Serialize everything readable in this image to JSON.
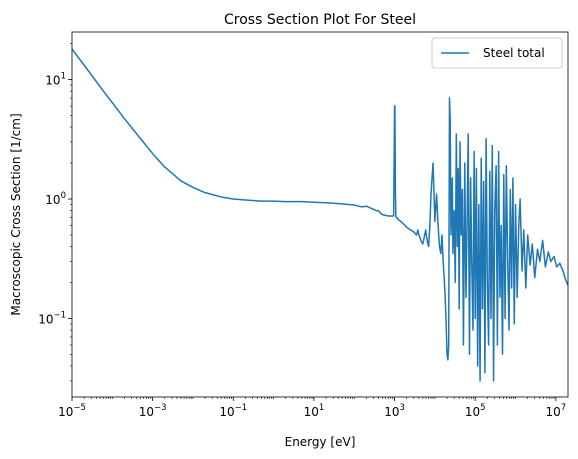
{
  "chart_data": {
    "type": "line",
    "title": "Cross Section Plot For Steel",
    "xlabel": "Energy [eV]",
    "ylabel": "Macroscopic Cross Section [1/cm]",
    "xscale": "log",
    "yscale": "log",
    "xlim": [
      1e-05,
      20000000
    ],
    "ylim": [
      0.022,
      25
    ],
    "grid": false,
    "legend_position": "top-right",
    "x_ticks": [
      {
        "value": 1e-05,
        "base": "10",
        "exp": "−5"
      },
      {
        "value": 0.001,
        "base": "10",
        "exp": "−3"
      },
      {
        "value": 0.1,
        "base": "10",
        "exp": "−1"
      },
      {
        "value": 10,
        "base": "10",
        "exp": "1"
      },
      {
        "value": 1000,
        "base": "10",
        "exp": "3"
      },
      {
        "value": 100000,
        "base": "10",
        "exp": "5"
      },
      {
        "value": 10000000,
        "base": "10",
        "exp": "7"
      }
    ],
    "y_ticks": [
      {
        "value": 0.1,
        "base": "10",
        "exp": "−1"
      },
      {
        "value": 1,
        "base": "10",
        "exp": "0"
      },
      {
        "value": 10,
        "base": "10",
        "exp": "1"
      }
    ],
    "series": [
      {
        "name": "Steel total",
        "color": "#1f77b4",
        "x": [
          1e-05,
          2e-05,
          5e-05,
          0.0001,
          0.0002,
          0.0005,
          0.001,
          0.002,
          0.005,
          0.01,
          0.02,
          0.05,
          0.1,
          0.2,
          0.5,
          1,
          2,
          5,
          10,
          20,
          50,
          100,
          150,
          200,
          300,
          350,
          400,
          420,
          450,
          500,
          700,
          950,
          1000,
          1020,
          1050,
          1080,
          1100,
          1150,
          1200,
          1500,
          2000,
          2500,
          3000,
          3500,
          3800,
          4000,
          4300,
          4600,
          5000,
          5600,
          5900,
          6500,
          7000,
          7500,
          8000,
          9000,
          10000,
          11000,
          12000,
          13000,
          14000,
          15000,
          16000,
          17000,
          18000,
          19000,
          20000,
          21000,
          22000,
          23000,
          24000,
          25000,
          26000,
          27000,
          28000,
          30000,
          32000,
          34000,
          36000,
          38000,
          40000,
          42000,
          45000,
          48000,
          51000,
          55000,
          59000,
          63000,
          67000,
          72000,
          77000,
          82000,
          88000,
          94000,
          100000,
          107000,
          115000,
          123000,
          132000,
          141000,
          151000,
          162000,
          174000,
          186000,
          200000,
          215000,
          230000,
          247000,
          265000,
          285000,
          305000,
          330000,
          355000,
          380000,
          410000,
          440000,
          475000,
          510000,
          550000,
          590000,
          640000,
          690000,
          740000,
          800000,
          860000,
          930000,
          1000000,
          1100000,
          1200000,
          1300000,
          1450000,
          1600000,
          1800000,
          2000000,
          2300000,
          2600000,
          3000000,
          3500000,
          4000000,
          4700000,
          5500000,
          6500000,
          7500000,
          9000000,
          10500000,
          12500000,
          15000000,
          17500000,
          20000000
        ],
        "y": [
          18.0,
          13.2,
          8.7,
          6.4,
          4.7,
          3.2,
          2.4,
          1.85,
          1.42,
          1.25,
          1.13,
          1.04,
          1.0,
          0.98,
          0.96,
          0.96,
          0.95,
          0.95,
          0.94,
          0.93,
          0.91,
          0.89,
          0.86,
          0.87,
          0.82,
          0.8,
          0.8,
          0.78,
          0.76,
          0.74,
          0.72,
          0.72,
          6.0,
          6.0,
          1.1,
          0.71,
          0.7,
          0.7,
          0.68,
          0.64,
          0.58,
          0.55,
          0.53,
          0.5,
          0.55,
          0.5,
          0.47,
          0.44,
          0.42,
          0.5,
          0.55,
          0.44,
          0.4,
          0.6,
          1.1,
          2.0,
          0.65,
          1.1,
          0.6,
          0.4,
          0.35,
          0.5,
          0.3,
          0.22,
          0.15,
          0.09,
          0.05,
          0.045,
          0.06,
          7.0,
          4.5,
          0.5,
          0.9,
          1.5,
          0.35,
          0.8,
          0.2,
          3.5,
          0.4,
          1.8,
          0.12,
          3.0,
          0.5,
          1.2,
          0.06,
          2.0,
          0.15,
          0.7,
          3.5,
          0.05,
          1.5,
          0.3,
          0.08,
          2.5,
          0.1,
          1.8,
          0.04,
          0.9,
          0.03,
          2.2,
          0.12,
          1.4,
          0.035,
          3.2,
          0.2,
          0.06,
          1.7,
          0.1,
          2.8,
          0.03,
          0.8,
          1.9,
          0.06,
          2.5,
          0.15,
          0.6,
          0.05,
          1.6,
          0.1,
          1.9,
          0.3,
          0.08,
          1.2,
          0.18,
          1.5,
          0.09,
          0.9,
          0.15,
          0.6,
          1.0,
          0.25,
          0.55,
          0.18,
          0.5,
          0.28,
          0.42,
          0.22,
          0.38,
          0.3,
          0.45,
          0.27,
          0.36,
          0.3,
          0.33,
          0.27,
          0.29,
          0.25,
          0.21,
          0.19
        ]
      }
    ]
  }
}
